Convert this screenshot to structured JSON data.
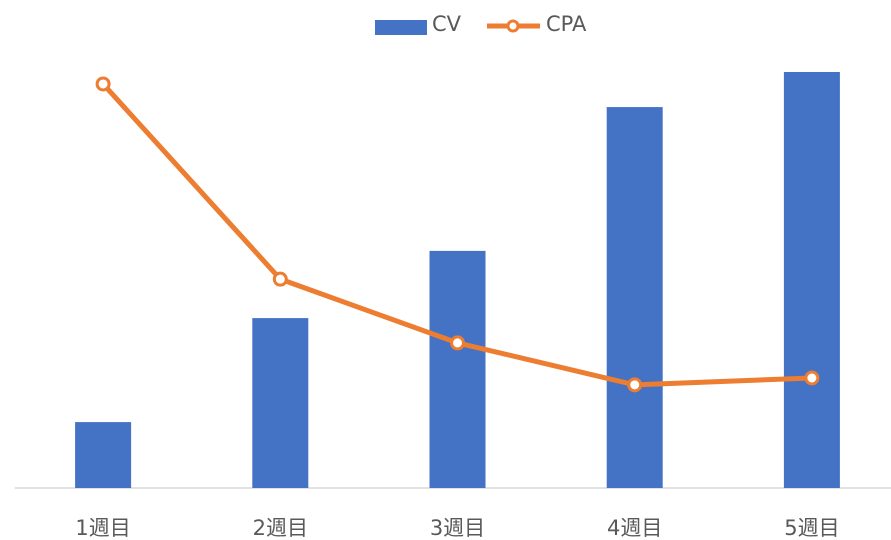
{
  "chart_data": {
    "type": "bar_line",
    "categories": [
      "1週目",
      "2週目",
      "3週目",
      "4週目",
      "5週目"
    ],
    "series": [
      {
        "name": "CV",
        "type": "bar",
        "color": "#4472c4",
        "values": [
          15.4,
          39.7,
          55.4,
          89,
          97.2
        ]
      },
      {
        "name": "CPA",
        "type": "line",
        "color": "#ed7d31",
        "values": [
          94.4,
          48.8,
          33.9,
          24.1,
          25.7
        ]
      }
    ],
    "ylim": [
      0,
      100
    ],
    "legend": "top"
  }
}
